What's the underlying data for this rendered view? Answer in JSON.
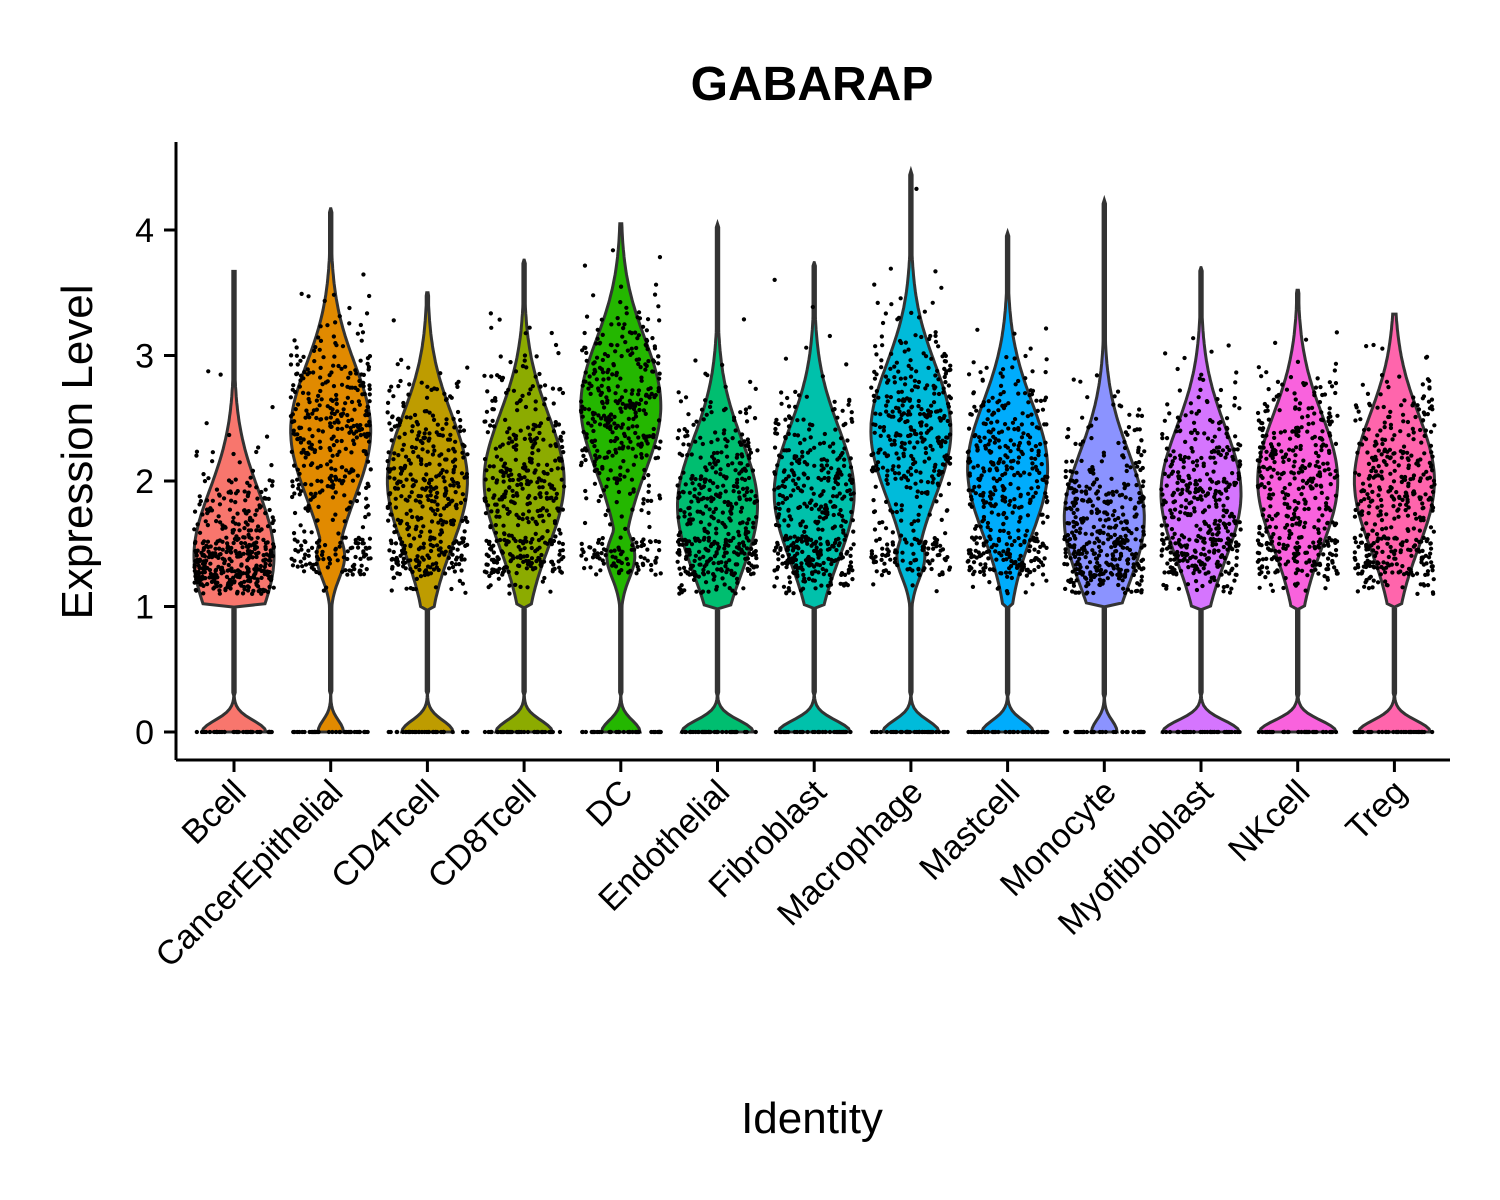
{
  "chart_data": {
    "type": "violin",
    "title": "GABARAP",
    "xlabel": "Identity",
    "ylabel": "Expression Level",
    "ylim": [
      -0.2,
      4.7
    ],
    "yticks": [
      0,
      1,
      2,
      3,
      4
    ],
    "grid": false,
    "legend": "none",
    "categories": [
      "Bcell",
      "CancerEpithelial",
      "CD4Tcell",
      "CD8Tcell",
      "DC",
      "Endothelial",
      "Fibroblast",
      "Macrophage",
      "Mastcell",
      "Monocyte",
      "Myofibroblast",
      "NKcell",
      "Treg"
    ],
    "colors": [
      "#F8766D",
      "#E18A00",
      "#BE9C00",
      "#8CAB00",
      "#24B700",
      "#00BE70",
      "#00C1AB",
      "#00BBDA",
      "#00ACFC",
      "#8B93FF",
      "#D575FE",
      "#F962DD",
      "#FF65AC"
    ],
    "max_values": [
      3.67,
      4.17,
      3.5,
      3.76,
      4.05,
      4.05,
      3.74,
      4.47,
      3.98,
      4.24,
      3.7,
      3.52,
      3.33
    ],
    "main_mode": [
      1.4,
      2.4,
      2.0,
      2.0,
      2.6,
      1.8,
      1.9,
      2.4,
      2.1,
      1.7,
      1.9,
      2.0,
      2.0
    ],
    "zero_fraction": [
      0.25,
      0.1,
      0.2,
      0.22,
      0.15,
      0.28,
      0.28,
      0.22,
      0.2,
      0.1,
      0.3,
      0.3,
      0.28
    ]
  }
}
